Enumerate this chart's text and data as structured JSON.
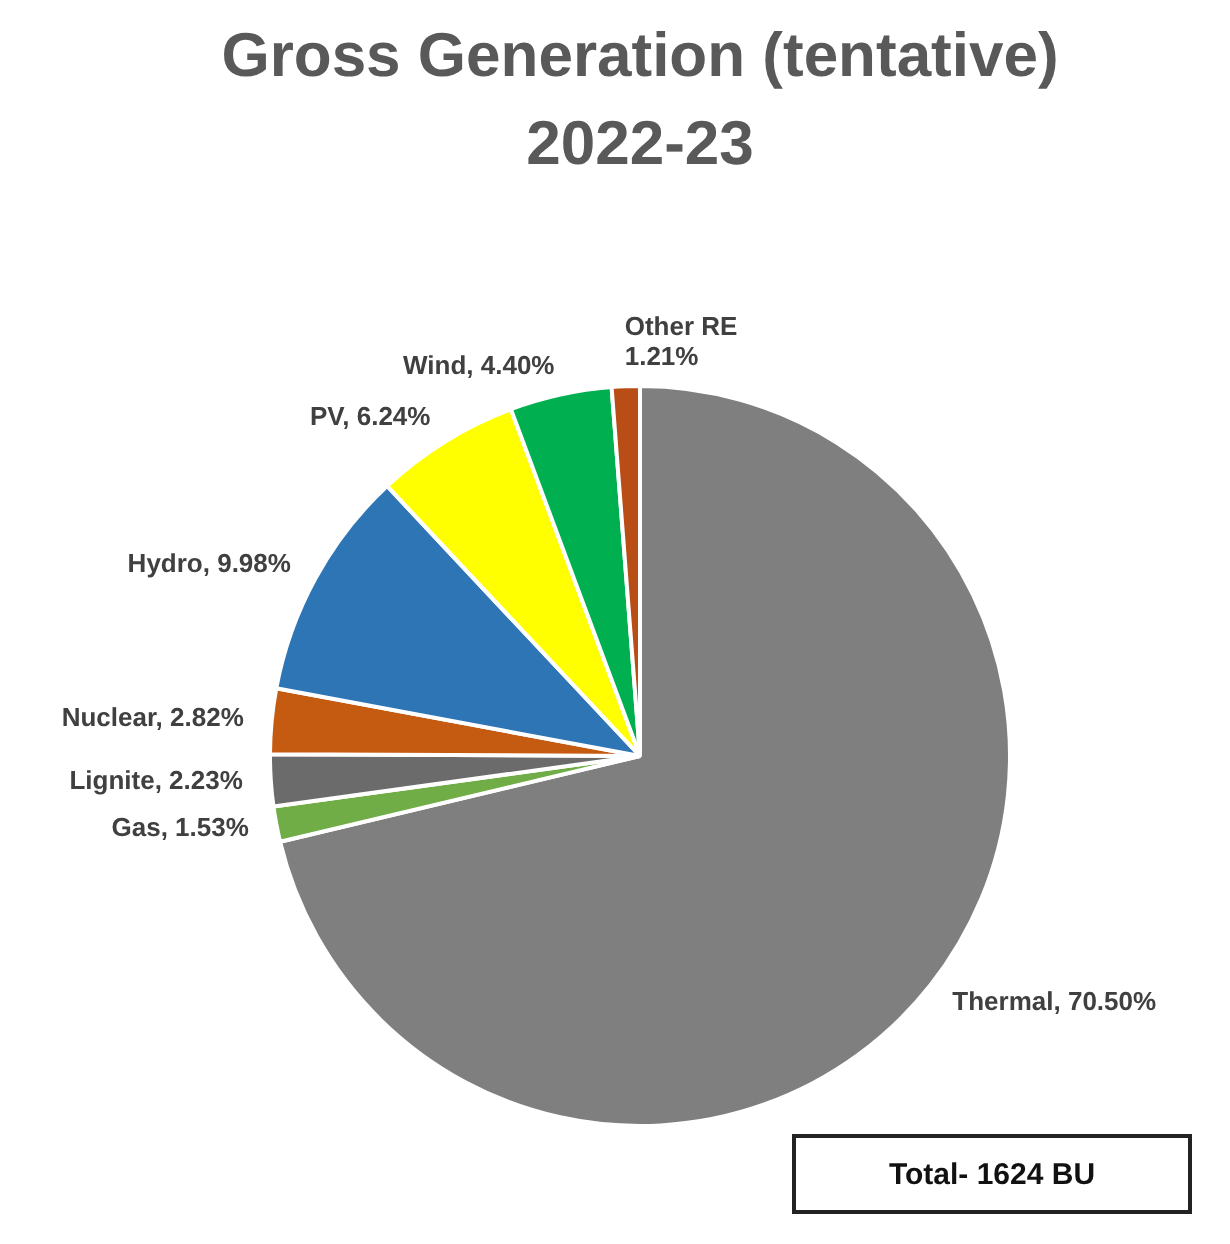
{
  "chart_data": {
    "type": "pie",
    "title": "Gross Generation (tentative) 2022-23",
    "categories": [
      "Thermal",
      "Gas",
      "Lignite",
      "Nuclear",
      "Hydro",
      "PV",
      "Wind",
      "Other RE"
    ],
    "values": [
      70.5,
      1.53,
      2.23,
      2.82,
      9.98,
      6.24,
      4.4,
      1.21
    ],
    "value_labels": [
      "70.50%",
      "1.53%",
      "2.23%",
      "2.82%",
      "9.98%",
      "6.24%",
      "4.40%",
      "1.21%"
    ],
    "colors": [
      "#7f7f7f",
      "#70ad47",
      "#6b6b6b",
      "#c55a11",
      "#2e75b6",
      "#ffff00",
      "#00b050",
      "#b84d16"
    ],
    "legend": false,
    "annotations": [
      "Total- 1624 BU"
    ]
  }
}
